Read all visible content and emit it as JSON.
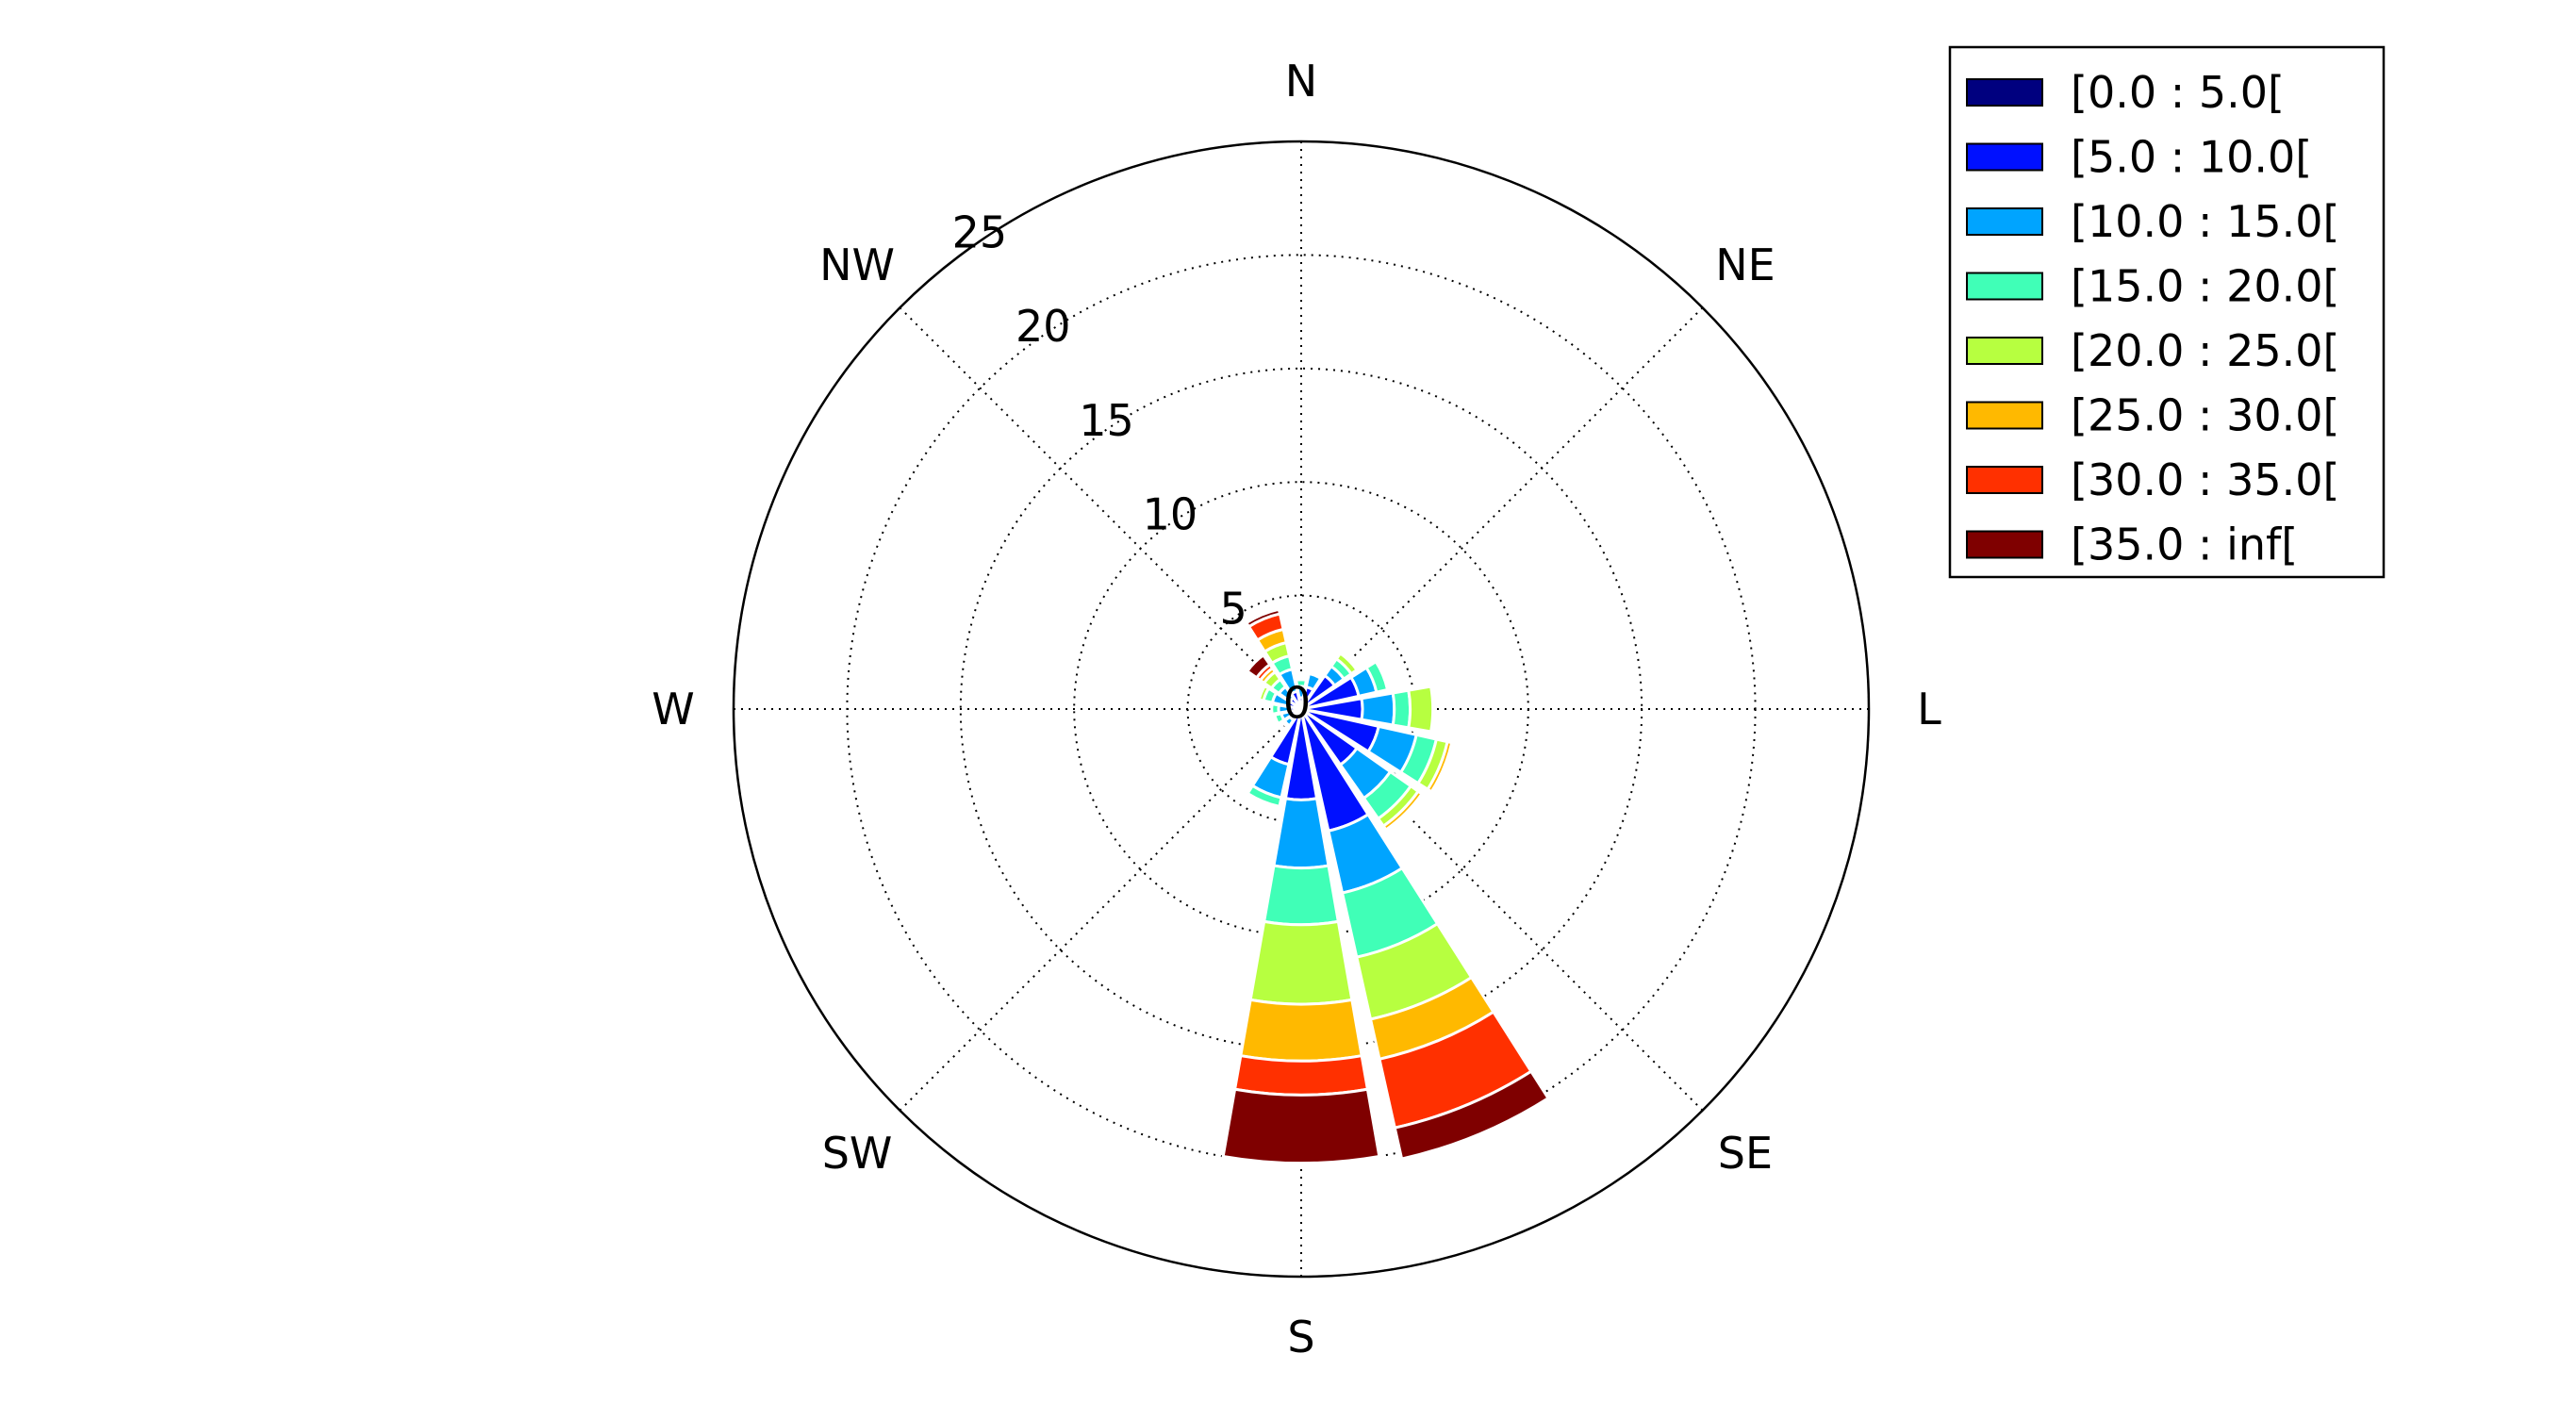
{
  "chart_data": {
    "type": "windrose",
    "radial_ticks": [
      "0",
      "5",
      "10",
      "15",
      "20",
      "25"
    ],
    "radial_tick_values": [
      0,
      5,
      10,
      15,
      20,
      25
    ],
    "rmax": 25,
    "grid": true,
    "legend_position": "top-right",
    "directions": [
      {
        "angle": 0,
        "label": "N"
      },
      {
        "angle": 45,
        "label": "NE"
      },
      {
        "angle": 90,
        "label": "L"
      },
      {
        "angle": 135,
        "label": "SE"
      },
      {
        "angle": 180,
        "label": "S"
      },
      {
        "angle": 225,
        "label": "SW"
      },
      {
        "angle": 270,
        "label": "W"
      },
      {
        "angle": 315,
        "label": "NW"
      }
    ],
    "bins": [
      {
        "label": "[0.0 : 5.0[",
        "color": "#00007f"
      },
      {
        "label": "[5.0 : 10.0[",
        "color": "#0010ff"
      },
      {
        "label": "[10.0 : 15.0[",
        "color": "#00a4ff"
      },
      {
        "label": "[15.0 : 20.0[",
        "color": "#40ffb7"
      },
      {
        "label": "[20.0 : 25.0[",
        "color": "#b7ff40"
      },
      {
        "label": "[25.0 : 30.0[",
        "color": "#ffb900"
      },
      {
        "label": "[30.0 : 35.0[",
        "color": "#ff3000"
      },
      {
        "label": "[35.0 : inf[",
        "color": "#7f0000"
      }
    ],
    "sector_width_deg": 22.5,
    "sectors": [
      {
        "direction": 0,
        "cumulative": [
          0.2,
          0.5,
          1.0,
          1.3,
          1.4,
          1.45,
          1.5,
          1.55
        ]
      },
      {
        "direction": 22.5,
        "cumulative": [
          0.2,
          1.0,
          1.6,
          1.6,
          1.6,
          1.6,
          1.6,
          1.6
        ]
      },
      {
        "direction": 45,
        "cumulative": [
          0.2,
          1.8,
          2.3,
          2.7,
          3.0,
          3.1,
          3.15,
          3.15
        ]
      },
      {
        "direction": 67.5,
        "cumulative": [
          0.2,
          2.6,
          3.4,
          3.9,
          4.0,
          4.0,
          4.0,
          4.0
        ]
      },
      {
        "direction": 90,
        "cumulative": [
          0.2,
          2.7,
          4.1,
          4.8,
          5.8,
          5.8,
          5.8,
          5.8
        ]
      },
      {
        "direction": 112.5,
        "cumulative": [
          0.2,
          3.5,
          5.2,
          6.1,
          6.6,
          6.8,
          6.9,
          7.0
        ]
      },
      {
        "direction": 135,
        "cumulative": [
          0.2,
          3.0,
          4.8,
          5.9,
          6.3,
          6.5,
          6.6,
          6.7
        ]
      },
      {
        "direction": 157.5,
        "cumulative": [
          0.2,
          5.5,
          8.3,
          11.2,
          14.0,
          15.8,
          18.9,
          20.3
        ]
      },
      {
        "direction": 180,
        "cumulative": [
          0.2,
          4.0,
          7.0,
          9.5,
          13.0,
          15.5,
          17.0,
          20.0
        ]
      },
      {
        "direction": 202.5,
        "cumulative": [
          0.2,
          2.5,
          4.0,
          4.4,
          4.4,
          4.4,
          4.4,
          4.4
        ]
      },
      {
        "direction": 225,
        "cumulative": [
          0.2,
          0.6,
          0.9,
          1.0,
          1.0,
          1.0,
          1.0,
          1.0
        ]
      },
      {
        "direction": 247.5,
        "cumulative": [
          0.2,
          0.5,
          0.9,
          1.2,
          1.3,
          1.3,
          1.3,
          1.3
        ]
      },
      {
        "direction": 270,
        "cumulative": [
          0.2,
          0.5,
          1.0,
          1.3,
          1.3,
          1.3,
          1.3,
          1.3
        ]
      },
      {
        "direction": 292.5,
        "cumulative": [
          0.2,
          0.6,
          1.3,
          1.7,
          1.9,
          1.95,
          2.0,
          2.0
        ]
      },
      {
        "direction": 315,
        "cumulative": [
          0.2,
          0.6,
          1.2,
          1.6,
          2.0,
          2.2,
          2.4,
          2.9
        ]
      },
      {
        "direction": 337.5,
        "cumulative": [
          0.2,
          0.8,
          1.8,
          2.4,
          3.0,
          3.6,
          4.3,
          4.5
        ]
      }
    ]
  }
}
